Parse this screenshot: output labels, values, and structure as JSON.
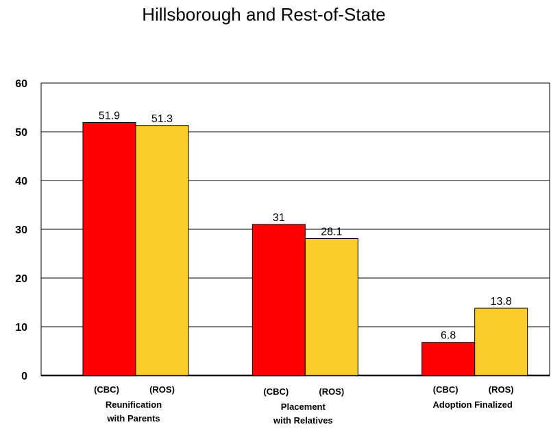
{
  "chart_data": {
    "type": "bar",
    "title": "Hillsborough and Rest-of-State",
    "ylim": [
      0,
      60
    ],
    "yticks": [
      "0",
      "10",
      "20",
      "30",
      "40",
      "50",
      "60"
    ],
    "grid": true,
    "categories": [
      [
        "Reunification",
        "with Parents"
      ],
      [
        "Placement",
        " with Relatives"
      ],
      [
        "Adoption Finalized"
      ]
    ],
    "series": [
      {
        "name": "(CBC)",
        "color": "#ff0000",
        "values": [
          51.9,
          31,
          6.8
        ],
        "labels": [
          "51.9",
          "31",
          "6.8"
        ]
      },
      {
        "name": "(ROS)",
        "color": "#f9cc2a",
        "values": [
          51.3,
          28.1,
          13.8
        ],
        "labels": [
          "51.3",
          "28.1",
          "13.8"
        ]
      }
    ]
  }
}
